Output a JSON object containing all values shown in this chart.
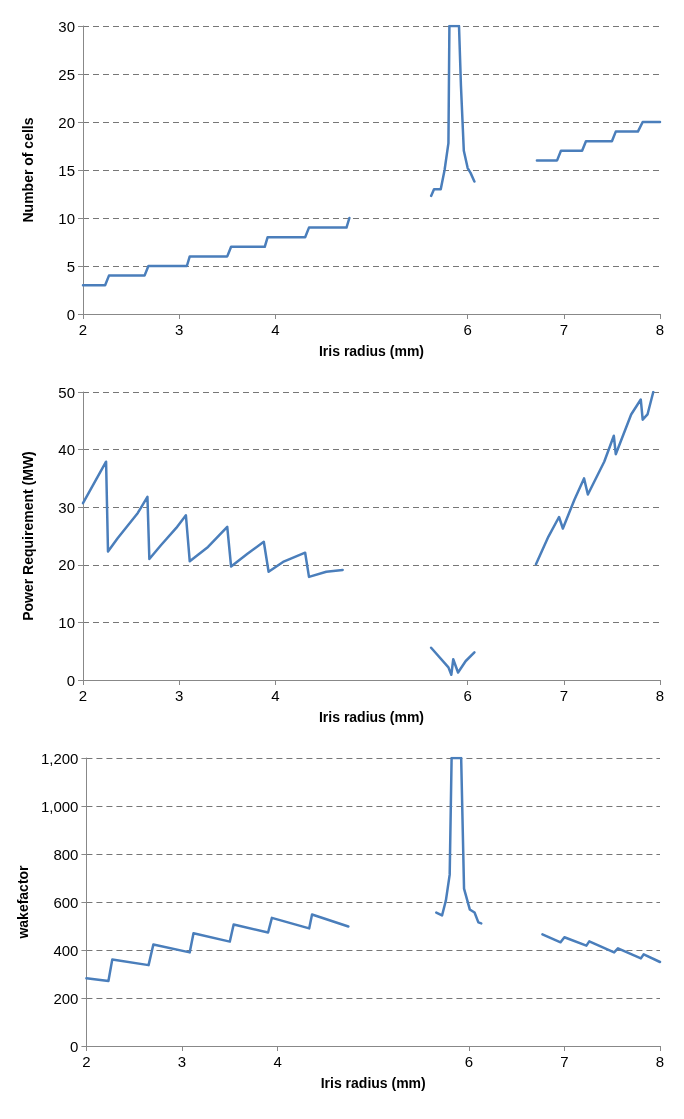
{
  "chart_data": [
    {
      "type": "line",
      "xlabel": "Iris radius (mm)",
      "ylabel": "Number of cells",
      "xlim": [
        2,
        8
      ],
      "xticks": [
        2,
        3,
        4,
        6,
        7,
        8
      ],
      "ylim": [
        0,
        30
      ],
      "yticks": [
        0,
        5,
        10,
        15,
        20,
        25,
        30
      ],
      "grid": "y",
      "marker": "none",
      "line_style": "solid",
      "series": [
        {
          "color": "#4a7ebb",
          "x": [
            2.0,
            2.23,
            2.27,
            2.64,
            2.68,
            3.08,
            3.11,
            3.5,
            3.54,
            3.89,
            3.92,
            4.31,
            4.35,
            4.74,
            4.77,
            5.2,
            5.62,
            5.65,
            5.72,
            5.76,
            5.8,
            5.81,
            5.91,
            5.93,
            5.96,
            6.0,
            6.03,
            6.07,
            6.4,
            6.72,
            6.93,
            6.97,
            7.19,
            7.23,
            7.5,
            7.54,
            7.77,
            7.82,
            8.0
          ],
          "values": [
            3,
            3,
            4,
            4,
            5,
            5,
            6,
            6,
            7,
            7,
            8,
            8,
            9,
            9,
            10,
            null,
            12.3,
            13,
            13,
            15,
            17.8,
            30,
            30,
            23.8,
            17,
            15.2,
            14.7,
            13.8,
            null,
            16,
            16,
            17,
            17,
            18,
            18,
            19,
            19,
            20,
            20
          ]
        }
      ]
    },
    {
      "type": "line",
      "xlabel": "Iris radius (mm)",
      "ylabel": "Power Requirement (MW)",
      "xlim": [
        2,
        8
      ],
      "xticks": [
        2,
        3,
        4,
        6,
        7,
        8
      ],
      "ylim": [
        0,
        50
      ],
      "yticks": [
        0,
        10,
        20,
        30,
        40,
        50
      ],
      "grid": "y",
      "marker": "none",
      "line_style": "solid",
      "series": [
        {
          "color": "#4a7ebb",
          "x": [
            2.0,
            2.24,
            2.26,
            2.36,
            2.57,
            2.67,
            2.69,
            2.81,
            2.97,
            3.07,
            3.11,
            3.3,
            3.5,
            3.54,
            3.71,
            3.88,
            3.93,
            4.08,
            4.31,
            4.35,
            4.53,
            4.7,
            5.2,
            5.62,
            5.8,
            5.83,
            5.85,
            5.9,
            5.98,
            6.07,
            6.4,
            6.71,
            6.84,
            6.95,
            6.99,
            7.11,
            7.21,
            7.25,
            7.42,
            7.52,
            7.54,
            7.7,
            7.8,
            7.82,
            7.87,
            7.93
          ],
          "values": [
            30.7,
            37.9,
            22.3,
            24.6,
            29.0,
            31.8,
            21.0,
            23.4,
            26.4,
            28.6,
            20.6,
            23.1,
            26.6,
            19.7,
            21.9,
            24.0,
            18.8,
            20.5,
            22.1,
            17.9,
            18.8,
            19.1,
            null,
            5.6,
            2.2,
            0.9,
            3.6,
            1.3,
            3.3,
            4.8,
            null,
            20.1,
            24.9,
            28.3,
            26.3,
            31.3,
            35.0,
            32.2,
            37.9,
            42.4,
            39.2,
            46.1,
            48.7,
            45.2,
            46.1,
            50
          ]
        }
      ]
    },
    {
      "type": "line",
      "xlabel": "Iris radius (mm)",
      "ylabel": "wakefactor",
      "xlim": [
        2,
        8
      ],
      "xticks": [
        2,
        3,
        4,
        6,
        7,
        8
      ],
      "ylim": [
        0,
        1200
      ],
      "yticks": [
        0,
        200,
        400,
        600,
        800,
        {
          "value": 1000,
          "label": "1,000"
        },
        {
          "value": 1200,
          "label": "1,200"
        }
      ],
      "grid": "y",
      "marker": "none",
      "line_style": "solid",
      "series": [
        {
          "color": "#4a7ebb",
          "x": [
            2.0,
            2.23,
            2.27,
            2.65,
            2.7,
            3.08,
            3.12,
            3.5,
            3.54,
            3.9,
            3.94,
            4.33,
            4.36,
            4.74,
            5.2,
            5.66,
            5.72,
            5.76,
            5.8,
            5.82,
            5.92,
            5.95,
            6.01,
            6.06,
            6.1,
            6.13,
            6.4,
            6.77,
            6.96,
            7.0,
            7.23,
            7.26,
            7.52,
            7.56,
            7.8,
            7.83,
            8.0
          ],
          "values": [
            282,
            271,
            360,
            337,
            423,
            390,
            470,
            435,
            506,
            473,
            534,
            490,
            548,
            498,
            null,
            556,
            544,
            606,
            714,
            1200,
            1200,
            656,
            569,
            556,
            515,
            511,
            null,
            465,
            432,
            453,
            418,
            436,
            390,
            407,
            365,
            382,
            350
          ]
        }
      ]
    }
  ]
}
